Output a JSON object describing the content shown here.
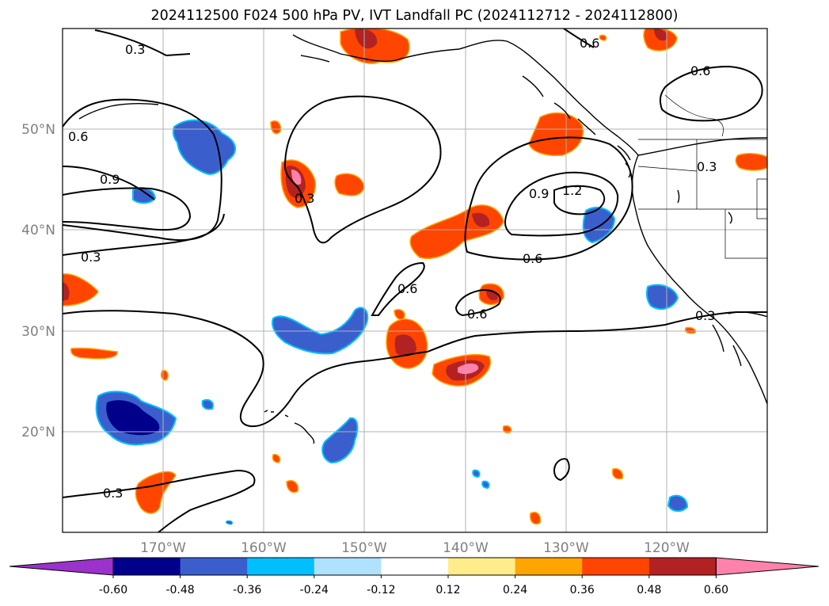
{
  "title": "2024112500 F024 500 hPa PV, IVT Landfall PC (2024112712 - 2024112800)",
  "map": {
    "lon_range": [
      -180,
      -110
    ],
    "lat_range": [
      10,
      60
    ],
    "lat_ticks": [
      {
        "value": 20,
        "label": "20°N"
      },
      {
        "value": 30,
        "label": "30°N"
      },
      {
        "value": 40,
        "label": "40°N"
      },
      {
        "value": 50,
        "label": "50°N"
      }
    ],
    "lon_ticks": [
      {
        "value": -170,
        "label": "170°W"
      },
      {
        "value": -160,
        "label": "160°W"
      },
      {
        "value": -150,
        "label": "150°W"
      },
      {
        "value": -140,
        "label": "140°W"
      },
      {
        "value": -130,
        "label": "130°W"
      },
      {
        "value": -120,
        "label": "120°W"
      }
    ],
    "grid": true,
    "contour_labels": [
      "0.3",
      "0.6",
      "0.9",
      "1.2"
    ]
  },
  "colorbar": {
    "levels": [
      "-0.60",
      "-0.48",
      "-0.36",
      "-0.24",
      "-0.12",
      "0.12",
      "0.24",
      "0.36",
      "0.48",
      "0.60"
    ],
    "colors": [
      "#9b32cc",
      "#00008b",
      "#3a5fcd",
      "#00bfff",
      "#b0e2ff",
      "#ffffff",
      "#ffec8b",
      "#ffa500",
      "#ff4500",
      "#b22222",
      "#ff82ab"
    ]
  }
}
